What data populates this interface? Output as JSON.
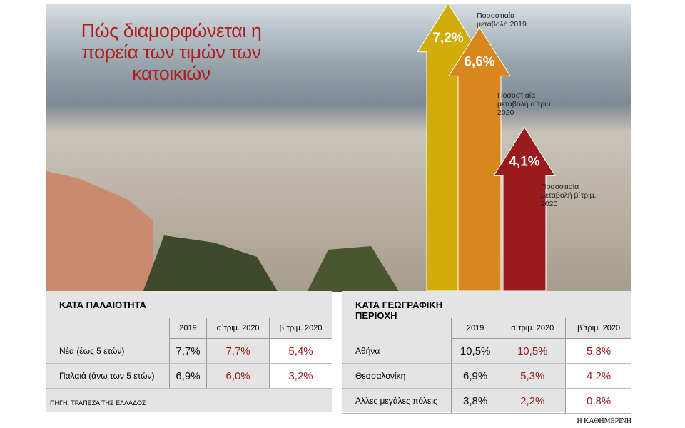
{
  "chart_data": {
    "type": "bar",
    "title": "Πώς διαμορφώνεται η πορεία των τιμών των κατοικιών",
    "categories": [
      "Ποσοστιαία μεταβολή 2019",
      "Ποσοστιαία μεταβολή α΄τριμ. 2020",
      "Ποσοστιαία μεταβολή β΄τριμ. 2020"
    ],
    "values": [
      7.2,
      6.6,
      4.1
    ],
    "value_labels": [
      "7,2%",
      "6,6%",
      "4,1%"
    ],
    "colors": [
      "#d2ad0a",
      "#d8861e",
      "#9a1b1d"
    ]
  },
  "tables": [
    {
      "title": "ΚΑΤΑ ΠΑΛΑΙΟΤΗΤΑ",
      "columns": [
        "2019",
        "α΄τριμ. 2020",
        "β΄τριμ. 2020"
      ],
      "rows": [
        [
          "Νέα (έως 5 ετών)",
          "7,7%",
          "7,7%",
          "5,4%"
        ],
        [
          "Παλαιά (άνω των 5 ετών)",
          "6,9%",
          "6,0%",
          "3,2%"
        ]
      ]
    },
    {
      "title": "ΚΑΤΑ ΓΕΩΓΡΑΦΙΚΗ ΠΕΡΙΟΧΗ",
      "columns": [
        "2019",
        "α΄τριμ. 2020",
        "β΄τριμ. 2020"
      ],
      "rows": [
        [
          "Αθήνα",
          "10,5%",
          "10,5%",
          "5,8%"
        ],
        [
          "Θεσσαλονίκη",
          "6,9%",
          "5,3%",
          "4,2%"
        ],
        [
          "Αλλες μεγάλες πόλεις",
          "3,8%",
          "2,2%",
          "0,8%"
        ]
      ]
    }
  ],
  "source": "ΠΗΓΗ: ΤΡΑΠΕΖΑ ΤΗΣ ΕΛΛΑΔΟΣ",
  "credit": "Η ΚΑΘΗΜΕΡΙΝΗ"
}
